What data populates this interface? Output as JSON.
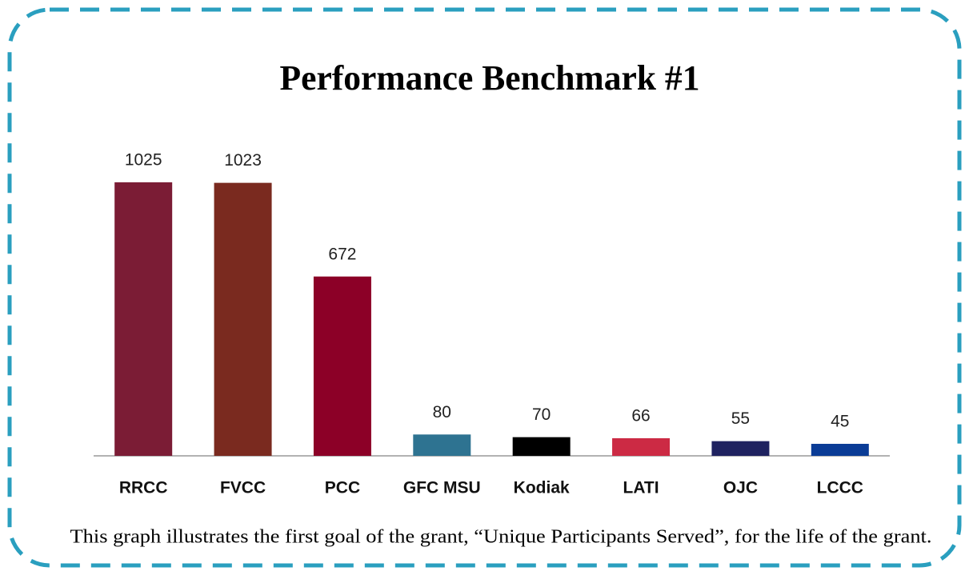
{
  "chart_data": {
    "type": "bar",
    "title": "Performance Benchmark #1",
    "categories": [
      "RRCC",
      "FVCC",
      "PCC",
      "GFC MSU",
      "Kodiak",
      "LATI",
      "OJC",
      "LCCC"
    ],
    "values": [
      1025,
      1023,
      672,
      80,
      70,
      66,
      55,
      45
    ],
    "colors": [
      "#7b1c35",
      "#7a2a1f",
      "#8c0027",
      "#2e7391",
      "#000000",
      "#cc2a44",
      "#1f2260",
      "#0a3c96"
    ],
    "caption": "This graph illustrates the first goal of the grant, “Unique Participants Served”, for the life of the grant."
  }
}
